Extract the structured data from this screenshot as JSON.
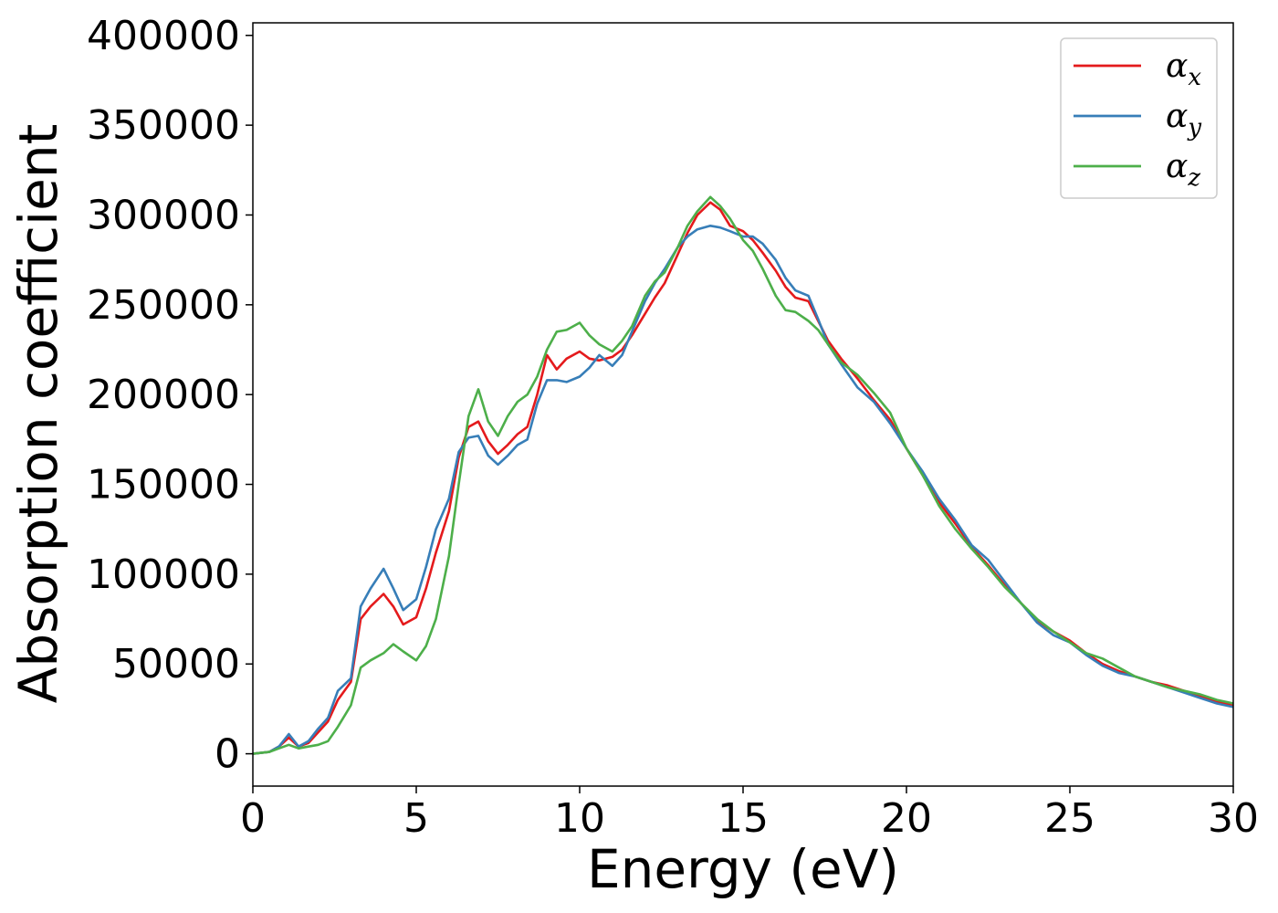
{
  "chart_data": {
    "type": "line",
    "xlabel": "Energy (eV)",
    "ylabel": "Absorption coefficient",
    "xlim": [
      0,
      30
    ],
    "ylim": [
      -18000,
      407000
    ],
    "x_ticks": [
      0,
      5,
      10,
      15,
      20,
      25,
      30
    ],
    "x_tick_labels": [
      "0",
      "5",
      "10",
      "15",
      "20",
      "25",
      "30"
    ],
    "y_ticks": [
      0,
      50000,
      100000,
      150000,
      200000,
      250000,
      300000,
      350000,
      400000
    ],
    "y_tick_labels": [
      "0",
      "50000",
      "100000",
      "150000",
      "200000",
      "250000",
      "300000",
      "350000",
      "400000"
    ],
    "grid": false,
    "legend_position": "top-right",
    "series": [
      {
        "name": "αx",
        "symbol": "α",
        "subscript": "x",
        "color": "#e41a1c",
        "x": [
          0,
          0.5,
          0.8,
          1.1,
          1.4,
          1.7,
          2.0,
          2.3,
          2.6,
          3.0,
          3.3,
          3.6,
          4.0,
          4.3,
          4.6,
          5.0,
          5.3,
          5.6,
          6.0,
          6.3,
          6.6,
          6.9,
          7.2,
          7.5,
          7.8,
          8.1,
          8.4,
          8.7,
          9.0,
          9.3,
          9.6,
          10.0,
          10.3,
          10.6,
          11.0,
          11.3,
          11.6,
          12.0,
          12.3,
          12.6,
          13.0,
          13.3,
          13.6,
          14.0,
          14.3,
          14.6,
          15.0,
          15.3,
          15.6,
          16.0,
          16.3,
          16.6,
          17.0,
          17.3,
          17.6,
          18.0,
          18.5,
          19.0,
          19.5,
          20.0,
          20.5,
          21.0,
          21.5,
          22.0,
          22.5,
          23.0,
          23.5,
          24.0,
          24.5,
          25.0,
          25.5,
          26.0,
          26.5,
          27.0,
          27.5,
          28.0,
          28.5,
          29.0,
          29.5,
          30.0
        ],
        "y": [
          0,
          1000,
          4000,
          9000,
          4000,
          6000,
          12000,
          18000,
          30000,
          40000,
          75000,
          82000,
          89000,
          82000,
          72000,
          76000,
          92000,
          112000,
          135000,
          165000,
          182000,
          185000,
          174000,
          167000,
          172000,
          178000,
          182000,
          200000,
          222000,
          214000,
          220000,
          224000,
          220000,
          219000,
          221000,
          225000,
          233000,
          245000,
          254000,
          262000,
          278000,
          290000,
          300000,
          307000,
          303000,
          294000,
          291000,
          286000,
          279000,
          269000,
          260000,
          254000,
          252000,
          241000,
          230000,
          220000,
          209000,
          197000,
          186000,
          170000,
          155000,
          140000,
          128000,
          115000,
          105000,
          94000,
          84000,
          74000,
          68000,
          63000,
          56000,
          50000,
          46000,
          43000,
          40000,
          38000,
          35000,
          32000,
          29000,
          27000
        ]
      },
      {
        "name": "αy",
        "symbol": "α",
        "subscript": "y",
        "color": "#377eb8",
        "x": [
          0,
          0.5,
          0.8,
          1.1,
          1.4,
          1.7,
          2.0,
          2.3,
          2.6,
          3.0,
          3.3,
          3.6,
          4.0,
          4.3,
          4.6,
          5.0,
          5.3,
          5.6,
          6.0,
          6.3,
          6.6,
          6.9,
          7.2,
          7.5,
          7.8,
          8.1,
          8.4,
          8.7,
          9.0,
          9.3,
          9.6,
          10.0,
          10.3,
          10.6,
          11.0,
          11.3,
          11.6,
          12.0,
          12.3,
          12.6,
          13.0,
          13.3,
          13.6,
          14.0,
          14.3,
          14.6,
          15.0,
          15.3,
          15.6,
          16.0,
          16.3,
          16.6,
          17.0,
          17.3,
          17.6,
          18.0,
          18.5,
          19.0,
          19.5,
          20.0,
          20.5,
          21.0,
          21.5,
          22.0,
          22.5,
          23.0,
          23.5,
          24.0,
          24.5,
          25.0,
          25.5,
          26.0,
          26.5,
          27.0,
          27.5,
          28.0,
          28.5,
          29.0,
          29.5,
          30.0
        ],
        "y": [
          0,
          1000,
          4000,
          11000,
          4000,
          7000,
          14000,
          20000,
          35000,
          42000,
          82000,
          92000,
          103000,
          92000,
          80000,
          86000,
          104000,
          125000,
          142000,
          168000,
          176000,
          177000,
          166000,
          161000,
          166000,
          172000,
          175000,
          195000,
          208000,
          208000,
          207000,
          210000,
          215000,
          222000,
          216000,
          222000,
          235000,
          252000,
          262000,
          270000,
          282000,
          288000,
          292000,
          294000,
          293000,
          291000,
          288000,
          288000,
          284000,
          275000,
          265000,
          258000,
          255000,
          242000,
          228000,
          217000,
          204000,
          196000,
          184000,
          170000,
          157000,
          142000,
          130000,
          116000,
          108000,
          96000,
          84000,
          73000,
          66000,
          62000,
          55000,
          49000,
          45000,
          43000,
          40000,
          37000,
          34000,
          31000,
          28000,
          26000
        ]
      },
      {
        "name": "αz",
        "symbol": "α",
        "subscript": "z",
        "color": "#4daf4a",
        "x": [
          0,
          0.5,
          0.8,
          1.1,
          1.4,
          1.7,
          2.0,
          2.3,
          2.6,
          3.0,
          3.3,
          3.6,
          4.0,
          4.3,
          4.6,
          5.0,
          5.3,
          5.6,
          6.0,
          6.3,
          6.6,
          6.9,
          7.2,
          7.5,
          7.8,
          8.1,
          8.4,
          8.7,
          9.0,
          9.3,
          9.6,
          10.0,
          10.3,
          10.6,
          11.0,
          11.3,
          11.6,
          12.0,
          12.3,
          12.6,
          13.0,
          13.3,
          13.6,
          14.0,
          14.3,
          14.6,
          15.0,
          15.3,
          15.6,
          16.0,
          16.3,
          16.6,
          17.0,
          17.3,
          17.6,
          18.0,
          18.5,
          19.0,
          19.5,
          20.0,
          20.5,
          21.0,
          21.5,
          22.0,
          22.5,
          23.0,
          23.5,
          24.0,
          24.5,
          25.0,
          25.5,
          26.0,
          26.5,
          27.0,
          27.5,
          28.0,
          28.5,
          29.0,
          29.5,
          30.0
        ],
        "y": [
          0,
          1000,
          3000,
          5000,
          3000,
          4000,
          5000,
          7000,
          15000,
          27000,
          48000,
          52000,
          56000,
          61000,
          57000,
          52000,
          60000,
          75000,
          110000,
          150000,
          188000,
          203000,
          185000,
          177000,
          188000,
          196000,
          200000,
          210000,
          225000,
          235000,
          236000,
          240000,
          233000,
          228000,
          224000,
          230000,
          238000,
          255000,
          263000,
          268000,
          282000,
          294000,
          302000,
          310000,
          305000,
          298000,
          286000,
          280000,
          270000,
          255000,
          247000,
          246000,
          241000,
          236000,
          228000,
          218000,
          211000,
          201000,
          190000,
          170000,
          155000,
          138000,
          125000,
          114000,
          104000,
          93000,
          84000,
          75000,
          68000,
          62000,
          56000,
          53000,
          48000,
          43000,
          40000,
          37000,
          35000,
          33000,
          30000,
          28000
        ]
      }
    ]
  }
}
